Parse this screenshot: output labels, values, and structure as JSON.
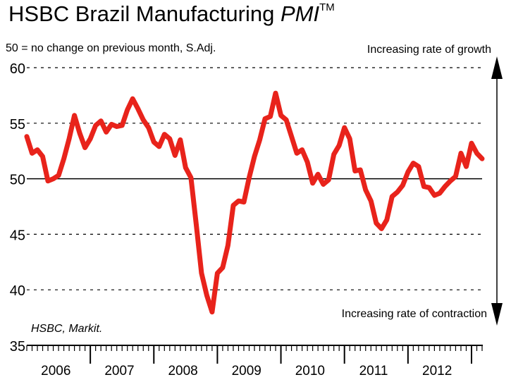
{
  "header": {
    "title_main": "HSBC Brazil Manufacturing",
    "title_pmi": "PMI",
    "title_tm": "TM",
    "subtitle": "50 = no change on previous month, S.Adj."
  },
  "annotations": {
    "growth": "Increasing rate of growth",
    "contraction": "Increasing rate of contraction",
    "source": "HSBC, Markit."
  },
  "colors": {
    "line": "#e8231b",
    "axis": "#000000"
  },
  "chart_data": {
    "type": "line",
    "title": "HSBC Brazil Manufacturing PMI",
    "subtitle": "50 = no change on previous month, S.Adj.",
    "ylim": [
      35,
      60
    ],
    "yticks": [
      35,
      40,
      45,
      50,
      55,
      60
    ],
    "reference_line": 50,
    "grid": "dashed horizontal",
    "year_labels": [
      "2006",
      "2007",
      "2008",
      "2009",
      "2010",
      "2011",
      "2012"
    ],
    "x_start": "2006-01",
    "x_end": "2012-11",
    "series": [
      {
        "values": [
          53.8,
          52.3,
          52.6,
          52.0,
          49.8,
          50.0,
          50.3,
          51.8,
          53.6,
          55.7,
          54.1,
          52.8,
          53.6,
          54.8,
          55.2,
          54.2,
          54.9,
          54.7,
          54.8,
          56.2,
          57.2,
          56.3,
          55.3,
          54.6,
          53.3,
          52.9,
          54.0,
          53.6,
          52.1,
          53.5,
          51.0,
          50.1,
          45.9,
          41.5,
          39.5,
          38.0,
          41.5,
          42.0,
          44.0,
          47.6,
          48.0,
          47.9,
          50.1,
          52.0,
          53.5,
          55.4,
          55.6,
          57.7,
          55.7,
          55.3,
          53.8,
          52.3,
          52.6,
          51.5,
          49.6,
          50.4,
          49.5,
          49.9,
          52.2,
          53.0,
          54.6,
          53.6,
          50.7,
          50.8,
          49.0,
          48.0,
          46.0,
          45.5,
          46.3,
          48.4,
          48.8,
          49.4,
          50.6,
          51.4,
          51.1,
          49.3,
          49.2,
          48.5,
          48.7,
          49.3,
          49.8,
          50.2,
          52.3,
          51.1,
          53.2,
          52.3,
          51.8
        ]
      }
    ]
  }
}
